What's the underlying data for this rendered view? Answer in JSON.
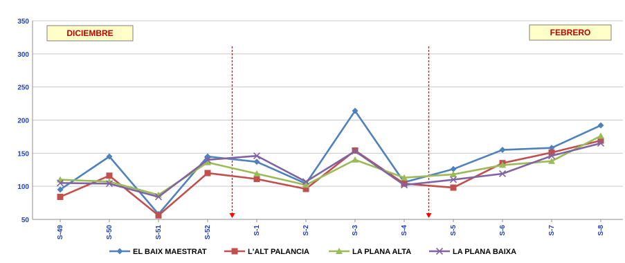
{
  "chart_data": {
    "type": "line",
    "title": "",
    "xlabel": "",
    "ylabel": "",
    "categories": [
      "S-49",
      "S-50",
      "S-51",
      "S-52",
      "S-1",
      "S-2",
      "S-3",
      "S-4",
      "S-5",
      "S-6",
      "S-7",
      "S-8"
    ],
    "ylim": [
      50,
      350
    ],
    "yticks": [
      50,
      100,
      150,
      200,
      250,
      300,
      350
    ],
    "grid": true,
    "legend_position": "bottom",
    "series": [
      {
        "name": "EL BAIX MAESTRAT",
        "color": "#4f81bd",
        "marker": "diamond",
        "values": [
          95,
          145,
          58,
          145,
          137,
          104,
          214,
          106,
          126,
          155,
          158,
          192
        ]
      },
      {
        "name": "L'ALT PALANCIA",
        "color": "#c0504d",
        "marker": "square",
        "values": [
          84,
          116,
          56,
          120,
          111,
          96,
          154,
          104,
          98,
          135,
          151,
          169
        ]
      },
      {
        "name": "LA PLANA ALTA",
        "color": "#9bbb59",
        "marker": "triangle",
        "values": [
          110,
          107,
          87,
          136,
          119,
          102,
          140,
          113,
          118,
          132,
          138,
          176
        ]
      },
      {
        "name": "LA PLANA BAIXA",
        "color": "#8064a2",
        "marker": "x",
        "values": [
          105,
          104,
          84,
          140,
          146,
          107,
          153,
          102,
          110,
          119,
          146,
          165
        ]
      }
    ],
    "annotations": [
      {
        "text": "DICIEMBRE"
      },
      {
        "text": "FEBRERO"
      }
    ],
    "separators": [
      {
        "between": [
          "S-52",
          "S-1"
        ],
        "color": "#ff0000",
        "style": "dashed-arrow"
      },
      {
        "between": [
          "S-4",
          "S-5"
        ],
        "color": "#ff0000",
        "style": "dashed-arrow"
      }
    ]
  }
}
